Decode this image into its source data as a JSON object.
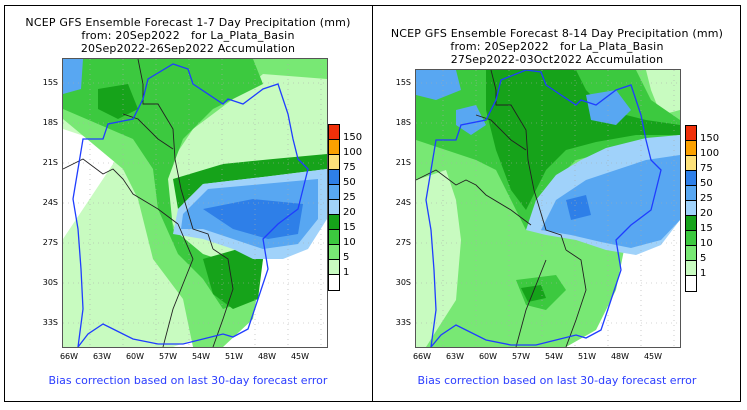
{
  "panels": [
    {
      "title_line1": "NCEP GFS Ensemble Forecast 1-7 Day Precipitation (mm)",
      "title_line2": "from: 20Sep2022   for La_Plata_Basin",
      "title_line3": "20Sep2022-26Sep2022 Accumulation",
      "footnote": "Bias correction based on last 30-day forecast error"
    },
    {
      "title_line1": "NCEP GFS Ensemble Forecast 8-14 Day Precipitation (mm)",
      "title_line2": "from: 20Sep2022   for La_Plata_Basin",
      "title_line3": "27Sep2022-03Oct2022 Accumulation",
      "footnote": "Bias correction based on last 30-day forecast error"
    }
  ],
  "axes": {
    "lat_labels": [
      "15S",
      "18S",
      "21S",
      "24S",
      "27S",
      "30S",
      "33S"
    ],
    "lon_labels": [
      "66W",
      "63W",
      "60W",
      "57W",
      "54W",
      "51W",
      "48W",
      "45W"
    ]
  },
  "legend": {
    "labels": [
      "150",
      "100",
      "75",
      "50",
      "25",
      "20",
      "15",
      "10",
      "5",
      "1"
    ],
    "colors": [
      "#f0300a",
      "#fba100",
      "#fde17a",
      "#2e7fe8",
      "#58a7f2",
      "#a0d2fa",
      "#16a31a",
      "#3cc93f",
      "#78e874",
      "#c8fbc0",
      "#ffffff"
    ]
  },
  "map_colors": {
    "basin_outline": "#1f3dff",
    "country_borders": "#222222",
    "grid": "#aaaaaa"
  }
}
